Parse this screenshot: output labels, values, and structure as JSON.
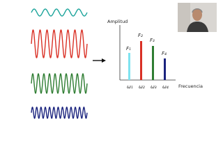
{
  "diagram": {
    "y_axis_label": "Amplitud",
    "x_axis_label": "Frecuencia",
    "amplitude_labels": [
      "F₁",
      "F₂",
      "F₃",
      "F₄"
    ],
    "frequency_labels": [
      "ω₁",
      "ω₂",
      "ω₃",
      "ω₄"
    ]
  }
}
